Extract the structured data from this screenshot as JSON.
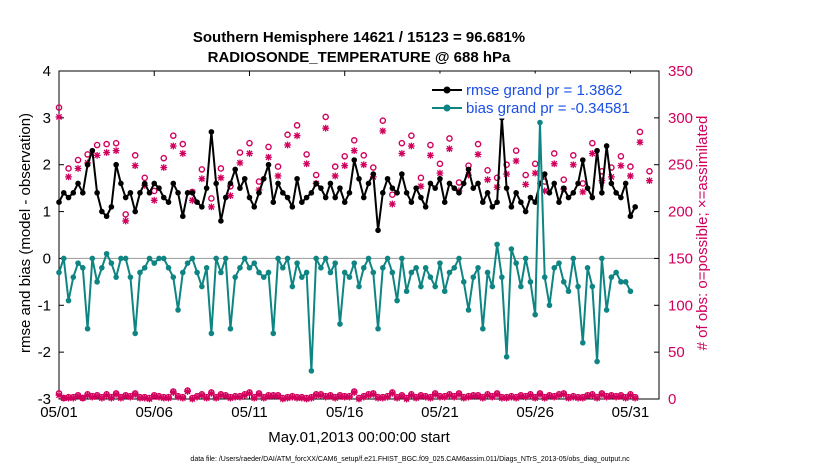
{
  "chart_data": {
    "type": "line",
    "title": "Southern Hemisphere 14621 / 15123 = 96.681%",
    "subtitle": "RADIOSONDE_TEMPERATURE @ 688 hPa",
    "xlabel": "May.01,2013 00:00:00 start",
    "ylabel_left": "rmse and bias (model - observation)",
    "ylabel_right": "# of obs: o=possible; ×=assimilated",
    "footnote": "data file: /Users/raeder/DAI/ATM_forcXX/CAM6_setup/f.e21.FHIST_BGC.f09_025.CAM6assim.011/Diags_NTrS_2013-05/obs_diag_output.nc",
    "xlim": [
      1,
      32.5
    ],
    "ylim_left": [
      -3,
      4
    ],
    "ylim_right": [
      0,
      350
    ],
    "x_ticks": [
      1,
      6,
      11,
      16,
      21,
      26,
      31
    ],
    "x_tick_labels": [
      "05/01",
      "05/06",
      "05/11",
      "05/16",
      "05/21",
      "05/26",
      "05/31"
    ],
    "y_ticks_left": [
      -3,
      -2,
      -1,
      0,
      1,
      2,
      3,
      4
    ],
    "y_ticks_right": [
      0,
      50,
      100,
      150,
      200,
      250,
      300,
      350
    ],
    "colors": {
      "rmse": "#000000",
      "bias": "#0e8582",
      "obs": "#d1005d",
      "legend_text": "#1a4fe6",
      "zero_line": "#9a9a9a"
    },
    "legend": [
      {
        "name": "rmse grand pr = 1.3862",
        "series": "rmse"
      },
      {
        "name": "bias grand pr = -0.34581",
        "series": "bias"
      }
    ],
    "x_start": 1,
    "x_step": 0.25,
    "series": [
      {
        "name": "rmse",
        "axis": "left",
        "values": [
          1.2,
          1.4,
          1.3,
          1.4,
          1.6,
          1.4,
          2.0,
          2.3,
          1.4,
          1.0,
          0.9,
          1.1,
          2.0,
          1.6,
          1.3,
          1.4,
          1.0,
          1.4,
          1.6,
          1.4,
          1.6,
          1.5,
          1.3,
          1.2,
          1.6,
          1.4,
          0.9,
          1.4,
          1.4,
          1.2,
          1.1,
          1.5,
          2.7,
          1.6,
          0.8,
          1.3,
          1.6,
          1.9,
          1.5,
          1.7,
          1.3,
          1.1,
          1.4,
          1.7,
          2.0,
          1.2,
          1.6,
          1.4,
          1.3,
          1.1,
          1.7,
          1.2,
          1.3,
          1.4,
          1.6,
          1.5,
          1.3,
          1.6,
          1.3,
          1.5,
          1.2,
          1.4,
          2.1,
          1.7,
          1.3,
          1.6,
          1.8,
          0.6,
          1.4,
          1.7,
          1.5,
          1.4,
          1.8,
          1.4,
          1.2,
          1.5,
          1.3,
          1.1,
          1.6,
          1.5,
          1.7,
          1.2,
          1.6,
          1.5,
          1.4,
          1.6,
          1.9,
          1.5,
          1.6,
          1.2,
          1.4,
          1.1,
          1.2,
          3.0,
          1.5,
          1.1,
          1.4,
          1.2,
          1.0,
          1.3,
          1.2,
          1.6,
          1.8,
          1.4,
          1.6,
          1.2,
          1.5,
          1.3,
          1.4,
          1.6,
          2.1,
          1.5,
          1.3,
          2.3,
          1.4,
          2.4,
          1.6,
          1.4,
          1.3,
          1.6,
          0.9,
          1.1
        ]
      },
      {
        "name": "bias",
        "axis": "left",
        "values": [
          -0.3,
          0,
          -0.9,
          -0.4,
          -0.1,
          -0.2,
          -1.5,
          0,
          -0.5,
          -0.2,
          0.1,
          -0.1,
          -0.4,
          0,
          0,
          -0.4,
          -1.6,
          -0.3,
          -0.2,
          0,
          -0.1,
          0,
          0,
          -0.2,
          -0.4,
          -1.1,
          -0.3,
          -0.1,
          0,
          -0.3,
          -0.6,
          -0.2,
          -1.6,
          0,
          -0.3,
          0,
          -1.5,
          -0.4,
          -0.2,
          0,
          -0.2,
          -0.1,
          -0.3,
          -0.4,
          -0.3,
          -1.6,
          0,
          -0.2,
          0,
          -0.6,
          -0.1,
          -0.4,
          -0.3,
          -2.4,
          0,
          -0.2,
          0,
          -0.3,
          -0.1,
          -1.4,
          -0.3,
          -0.4,
          -0.1,
          -0.6,
          -0.2,
          0,
          -0.3,
          -1.5,
          -0.2,
          0,
          -0.3,
          -0.9,
          0,
          -0.7,
          -0.3,
          -0.2,
          -0.6,
          -0.2,
          -0.4,
          -0.6,
          -0.1,
          -0.7,
          -0.3,
          -0.2,
          0,
          -0.5,
          -1.1,
          -0.4,
          -0.2,
          -1.5,
          -0.3,
          -0.6,
          0.3,
          -0.4,
          -2.1,
          0.2,
          -0.1,
          -0.6,
          0,
          -0.5,
          -1.2,
          2.9,
          -0.4,
          -1.0,
          -0.2,
          -0.1,
          -0.5,
          -0.7,
          0,
          -0.6,
          -1.8,
          -0.2,
          -0.6,
          -2.2,
          0,
          -1.1,
          -0.4,
          -0.3,
          -0.5,
          -0.5,
          -0.7
        ]
      },
      {
        "name": "obs possible",
        "axis": "right",
        "marker": "circle",
        "values": [
          6,
          1,
          2,
          2,
          4,
          1,
          5,
          3,
          4,
          2,
          5,
          2,
          6,
          2,
          4,
          3,
          6,
          2,
          2,
          1,
          4,
          3,
          2,
          2,
          8,
          3,
          2,
          9,
          1,
          3,
          5,
          2,
          7,
          2,
          5,
          4,
          2,
          3,
          3,
          5,
          7,
          2,
          6,
          2,
          4,
          4,
          4,
          1,
          2,
          3,
          2,
          2,
          1,
          2,
          5,
          5,
          3,
          4,
          2,
          4,
          3,
          3,
          8,
          1,
          3,
          5,
          6,
          2,
          2,
          3,
          7,
          2,
          4,
          1,
          5,
          2,
          4,
          3,
          2,
          6,
          3,
          3,
          5,
          3,
          6,
          2,
          3,
          4,
          4,
          2,
          5,
          3,
          6,
          2,
          2,
          3,
          2,
          4,
          3,
          5,
          2,
          6,
          2,
          4,
          3,
          5,
          6,
          2,
          3,
          2,
          2,
          4,
          5,
          2,
          6,
          3,
          4,
          3,
          4,
          2,
          5,
          2
        ]
      },
      {
        "name": "obs assimilated",
        "axis": "right",
        "marker": "x",
        "values": [
          4,
          1,
          1,
          1,
          3,
          1,
          4,
          2,
          3,
          1,
          4,
          1,
          5,
          1,
          3,
          2,
          5,
          1,
          1,
          0,
          3,
          2,
          1,
          1,
          7,
          2,
          1,
          8,
          0,
          2,
          4,
          1,
          6,
          1,
          4,
          3,
          1,
          2,
          2,
          4,
          6,
          1,
          5,
          1,
          3,
          3,
          3,
          0,
          1,
          2,
          1,
          1,
          0,
          1,
          4,
          4,
          2,
          3,
          1,
          3,
          2,
          2,
          7,
          0,
          2,
          4,
          5,
          1,
          1,
          2,
          6,
          1,
          3,
          0,
          4,
          1,
          3,
          2,
          1,
          5,
          2,
          2,
          4,
          2,
          5,
          1,
          2,
          3,
          3,
          1,
          4,
          2,
          5,
          1,
          1,
          2,
          1,
          3,
          2,
          4,
          1,
          5,
          1,
          3,
          2,
          4,
          5,
          1,
          2,
          1,
          1,
          3,
          4,
          1,
          5,
          2,
          3,
          2,
          3,
          1,
          4,
          1
        ]
      }
    ],
    "count_markers": {
      "possible": [
        [
          1,
          311
        ],
        [
          1.5,
          246
        ],
        [
          2,
          255
        ],
        [
          2.5,
          261
        ],
        [
          3,
          271
        ],
        [
          3.5,
          272
        ],
        [
          4,
          273
        ],
        [
          4.5,
          197
        ],
        [
          5,
          260
        ],
        [
          5.5,
          236
        ],
        [
          6,
          222
        ],
        [
          6.5,
          257
        ],
        [
          7,
          281
        ],
        [
          7.5,
          272
        ],
        [
          8,
          221
        ],
        [
          8.5,
          245
        ],
        [
          9,
          214
        ],
        [
          9.5,
          246
        ],
        [
          10,
          227
        ],
        [
          10.5,
          263
        ],
        [
          11,
          273
        ],
        [
          11.5,
          232
        ],
        [
          12,
          269
        ],
        [
          12.5,
          248
        ],
        [
          13,
          282
        ],
        [
          13.5,
          292
        ],
        [
          14,
          261
        ],
        [
          14.5,
          239
        ],
        [
          15,
          301
        ],
        [
          15.5,
          248
        ],
        [
          16,
          259
        ],
        [
          16.5,
          276
        ],
        [
          17,
          260
        ],
        [
          17.5,
          247
        ],
        [
          18,
          297
        ],
        [
          18.5,
          218
        ],
        [
          19,
          273
        ],
        [
          19.5,
          281
        ],
        [
          20,
          236
        ],
        [
          20.5,
          271
        ],
        [
          21,
          251
        ],
        [
          21.5,
          278
        ],
        [
          22,
          231
        ],
        [
          22.5,
          249
        ],
        [
          23,
          272
        ],
        [
          23.5,
          244
        ],
        [
          24,
          236
        ],
        [
          24.5,
          250
        ],
        [
          25,
          265
        ],
        [
          25.5,
          239
        ],
        [
          26,
          251
        ],
        [
          26.5,
          232
        ],
        [
          27,
          262
        ],
        [
          27.5,
          234
        ],
        [
          28,
          260
        ],
        [
          28.5,
          230
        ],
        [
          29,
          273
        ],
        [
          29.5,
          243
        ],
        [
          30,
          247
        ],
        [
          30.5,
          259
        ],
        [
          31,
          248
        ],
        [
          31.5,
          285
        ],
        [
          32,
          243
        ]
      ],
      "assimilated": [
        [
          1,
          301
        ],
        [
          1.5,
          237
        ],
        [
          2,
          246
        ],
        [
          2.5,
          252
        ],
        [
          3,
          260
        ],
        [
          3.5,
          263
        ],
        [
          4,
          265
        ],
        [
          4.5,
          190
        ],
        [
          5,
          249
        ],
        [
          5.5,
          228
        ],
        [
          6,
          212
        ],
        [
          6.5,
          247
        ],
        [
          7,
          270
        ],
        [
          7.5,
          262
        ],
        [
          8,
          212
        ],
        [
          8.5,
          235
        ],
        [
          9,
          205
        ],
        [
          9.5,
          236
        ],
        [
          10,
          217
        ],
        [
          10.5,
          252
        ],
        [
          11,
          262
        ],
        [
          11.5,
          223
        ],
        [
          12,
          258
        ],
        [
          12.5,
          238
        ],
        [
          13,
          271
        ],
        [
          13.5,
          281
        ],
        [
          14,
          251
        ],
        [
          14.5,
          230
        ],
        [
          15,
          289
        ],
        [
          15.5,
          238
        ],
        [
          16,
          249
        ],
        [
          16.5,
          265
        ],
        [
          17,
          250
        ],
        [
          17.5,
          237
        ],
        [
          18,
          286
        ],
        [
          18.5,
          208
        ],
        [
          19,
          262
        ],
        [
          19.5,
          270
        ],
        [
          20,
          227
        ],
        [
          20.5,
          260
        ],
        [
          21,
          241
        ],
        [
          21.5,
          267
        ],
        [
          22,
          222
        ],
        [
          22.5,
          239
        ],
        [
          23,
          261
        ],
        [
          23.5,
          234
        ],
        [
          24,
          226
        ],
        [
          24.5,
          240
        ],
        [
          25,
          254
        ],
        [
          25.5,
          229
        ],
        [
          26,
          241
        ],
        [
          26.5,
          222
        ],
        [
          27,
          251
        ],
        [
          27.5,
          224
        ],
        [
          28,
          250
        ],
        [
          28.5,
          221
        ],
        [
          29,
          262
        ],
        [
          29.5,
          233
        ],
        [
          30,
          237
        ],
        [
          30.5,
          249
        ],
        [
          31,
          238
        ],
        [
          31.5,
          274
        ],
        [
          32,
          233
        ]
      ]
    }
  }
}
